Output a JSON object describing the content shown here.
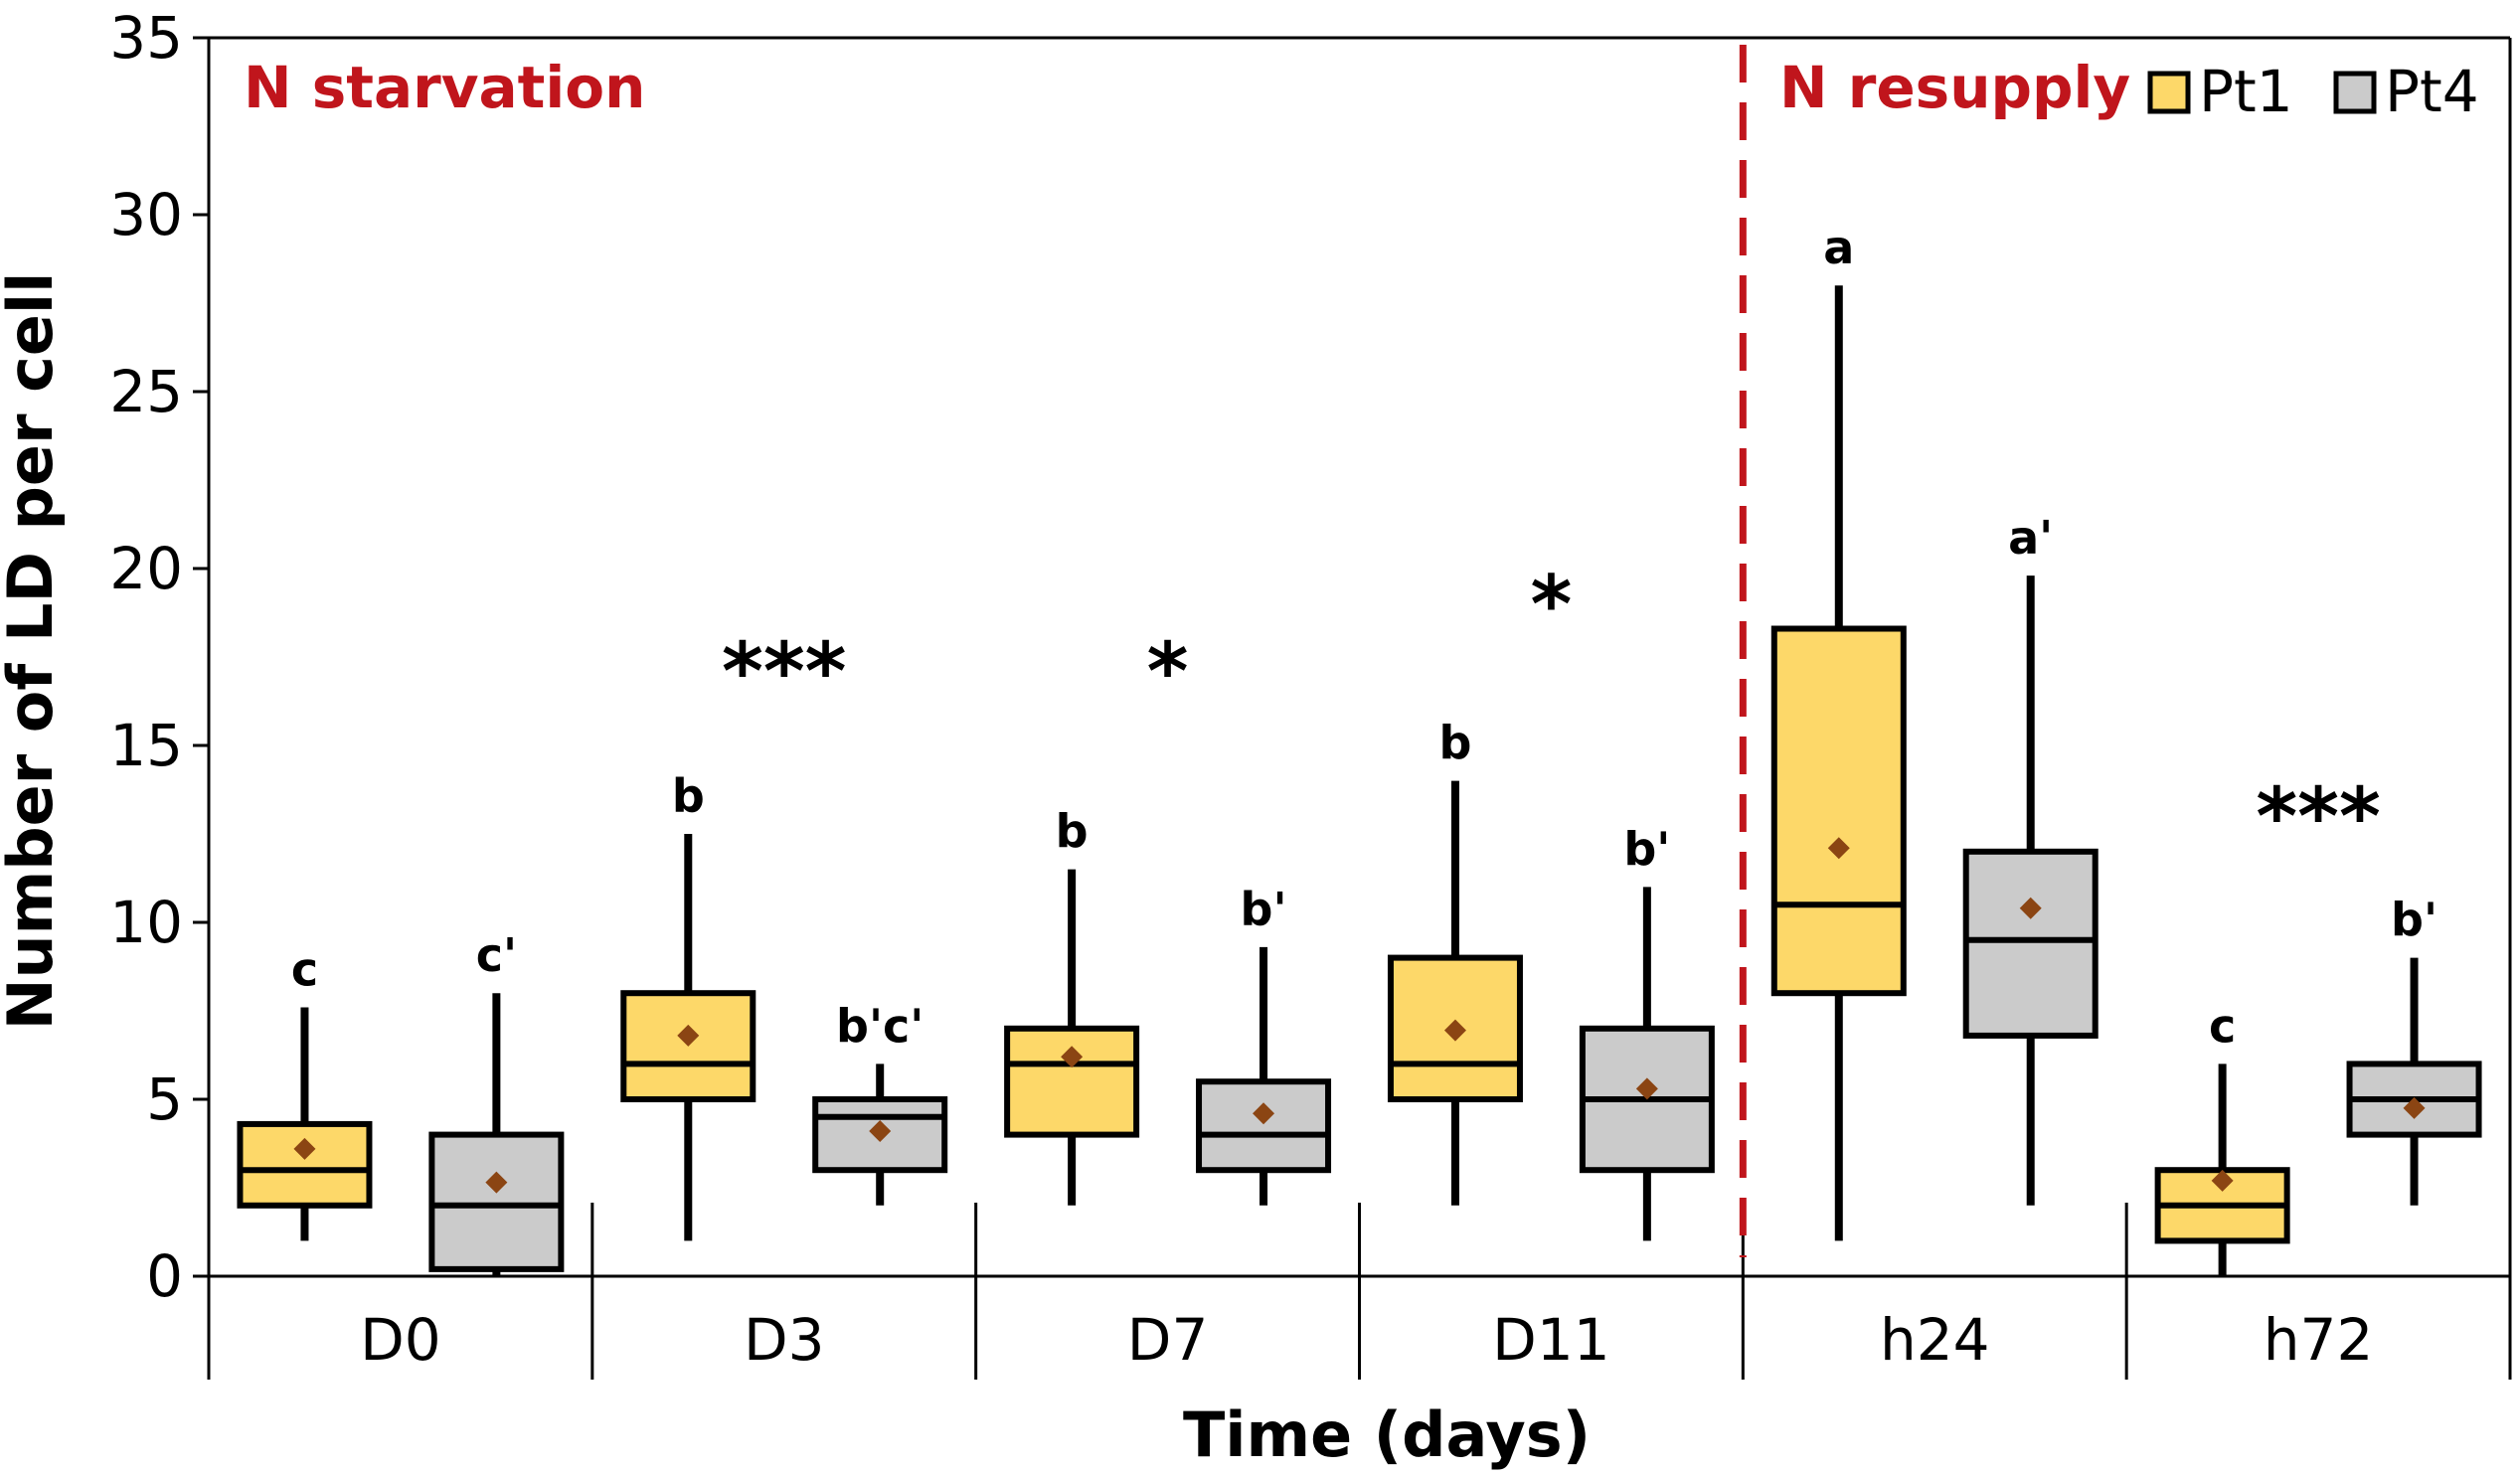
{
  "chart_data": {
    "type": "box",
    "xlabel": "Time (days)",
    "ylabel": "Number of LD per cell",
    "ylim": [
      0,
      35
    ],
    "yticks": [
      0,
      5,
      10,
      15,
      20,
      25,
      30,
      35
    ],
    "categories": [
      "D0",
      "D3",
      "D7",
      "D11",
      "h24",
      "h72"
    ],
    "phase_labels": {
      "starvation": "N starvation",
      "resupply": "N resupply"
    },
    "legend": [
      {
        "name": "Pt1",
        "color": "#fdd869"
      },
      {
        "name": "Pt4",
        "color": "#cbcbcb"
      }
    ],
    "series": [
      {
        "name": "Pt1",
        "color": "#fdd869",
        "boxes": [
          {
            "category": "D0",
            "min": 1,
            "q1": 2,
            "median": 3,
            "q3": 4.3,
            "max": 7.6,
            "mean": 3.6,
            "label": "c"
          },
          {
            "category": "D3",
            "min": 1,
            "q1": 5,
            "median": 6,
            "q3": 8,
            "max": 12.5,
            "mean": 6.8,
            "label": "b"
          },
          {
            "category": "D7",
            "min": 2,
            "q1": 4,
            "median": 6,
            "q3": 7,
            "max": 11.5,
            "mean": 6.2,
            "label": "b"
          },
          {
            "category": "D11",
            "min": 2,
            "q1": 5,
            "median": 6,
            "q3": 9,
            "max": 14,
            "mean": 6.95,
            "label": "b"
          },
          {
            "category": "h24",
            "min": 1,
            "q1": 8,
            "median": 10.5,
            "q3": 18.3,
            "max": 28,
            "mean": 12.1,
            "label": "a"
          },
          {
            "category": "h72",
            "min": 0,
            "q1": 1,
            "median": 2,
            "q3": 3,
            "max": 6,
            "mean": 2.7,
            "label": "c"
          }
        ]
      },
      {
        "name": "Pt4",
        "color": "#cbcbcb",
        "boxes": [
          {
            "category": "D0",
            "min": 0,
            "q1": 0.2,
            "median": 2,
            "q3": 4,
            "max": 8,
            "mean": 2.65,
            "label": "c'"
          },
          {
            "category": "D3",
            "min": 2,
            "q1": 3,
            "median": 4.5,
            "q3": 5,
            "max": 6,
            "mean": 4.1,
            "label": "b'c'"
          },
          {
            "category": "D7",
            "min": 2,
            "q1": 3,
            "median": 4,
            "q3": 5.5,
            "max": 9.3,
            "mean": 4.6,
            "label": "b'"
          },
          {
            "category": "D11",
            "min": 1,
            "q1": 3,
            "median": 5,
            "q3": 7,
            "max": 11,
            "mean": 5.3,
            "label": "b'"
          },
          {
            "category": "h24",
            "min": 2,
            "q1": 6.8,
            "median": 9.5,
            "q3": 12,
            "max": 19.8,
            "mean": 10.4,
            "label": "a'"
          },
          {
            "category": "h72",
            "min": 2,
            "q1": 4,
            "median": 5,
            "q3": 6,
            "max": 9,
            "mean": 4.75,
            "label": "b'"
          }
        ]
      }
    ],
    "significance": [
      {
        "category": "D3",
        "text": "***",
        "y": 16.3
      },
      {
        "category": "D7",
        "text": "*",
        "y": 16.3
      },
      {
        "category": "D11",
        "text": "*",
        "y": 18.2
      },
      {
        "category": "h72",
        "text": "***",
        "y": 12.2
      }
    ]
  }
}
